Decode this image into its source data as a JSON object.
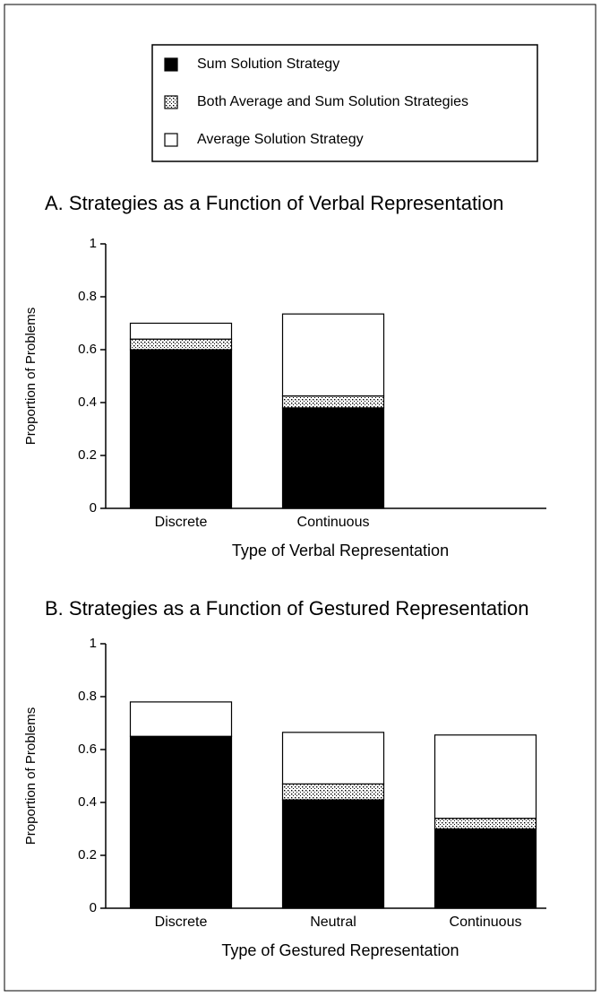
{
  "chart_data": [
    {
      "type": "stacked_bar",
      "title": "A. Strategies as a Function of Verbal Representation",
      "x_label": "Type of Verbal Representation",
      "y_label": "Proportion of Problems",
      "categories": [
        "Discrete",
        "Continuous"
      ],
      "series": [
        {
          "name": "Sum Solution Strategy",
          "color": "#000000",
          "values": [
            0.6,
            0.38
          ]
        },
        {
          "name": "Both Average and Sum Solution Strategies",
          "color": "#000000",
          "pattern": "dots",
          "values": [
            0.04,
            0.045
          ]
        },
        {
          "name": "Average Solution Strategy",
          "color": "#ffffff",
          "values": [
            0.06,
            0.31
          ]
        }
      ],
      "ylim": [
        0,
        1
      ],
      "yticks": [
        0,
        0.2,
        0.4,
        0.6,
        0.8,
        1
      ]
    },
    {
      "type": "stacked_bar",
      "title": "B. Strategies as a Function of Gestured Representation",
      "x_label": "Type of Gestured Representation",
      "y_label": "Proportion of Problems",
      "categories": [
        "Discrete",
        "Neutral",
        "Continuous"
      ],
      "series": [
        {
          "color": "#000000",
          "values": [
            0.65,
            0.41,
            0.3
          ]
        },
        {
          "color": "#000000",
          "pattern": "dots",
          "values": [
            0,
            0.06,
            0.04
          ]
        },
        {
          "color": "#ffffff",
          "values": [
            0.13,
            0.195,
            0.315
          ]
        }
      ],
      "ylim": [
        0,
        1
      ],
      "yticks": [
        0,
        0.2,
        0.4,
        0.6,
        0.8,
        1
      ]
    }
  ]
}
